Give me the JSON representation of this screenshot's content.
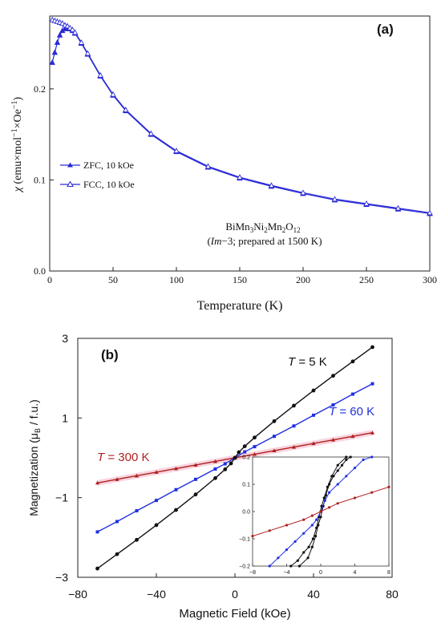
{
  "chart_data": [
    {
      "type": "line",
      "panel_label": "(a)",
      "xlabel": "Temperature (K)",
      "ylabel_main": "χ",
      "ylabel_rest": " (emu×mol",
      "ylabel_sup1": "−1",
      "ylabel_mid": "×Oe",
      "ylabel_sup2": "−1",
      "ylabel_end": ")",
      "xlim": [
        0,
        300
      ],
      "ylim": [
        0,
        0.28
      ],
      "xticks": [
        0,
        50,
        100,
        150,
        200,
        250,
        300
      ],
      "xtick_labels": [
        "0",
        "50",
        "100",
        "150",
        "200",
        "250",
        "300"
      ],
      "yticks": [
        0.0,
        0.1,
        0.2
      ],
      "ytick_labels": [
        "0.0",
        "0.1",
        "0.2"
      ],
      "legend": [
        "ZFC, 10 kOe",
        "FCC, 10 kOe"
      ],
      "annotation": {
        "line1": "BiMn",
        "line1_sub1": "3",
        "line1_mid1": "Ni",
        "line1_sub2": "2",
        "line1_mid2": "Mn",
        "line1_sub3": "2",
        "line1_mid3": "O",
        "line1_sub4": "12",
        "line2_open": "(",
        "line2_italic": "Im",
        "line2_rest": "−3; prepared at 1500 K)"
      },
      "series": [
        {
          "name": "ZFC, 10 kOe",
          "color": "#2a2ad6",
          "x": [
            2,
            4,
            6,
            8,
            10,
            12,
            14,
            16,
            18,
            20,
            25,
            30,
            40,
            50,
            60,
            80,
            100,
            125,
            150,
            175,
            200,
            225,
            250,
            275,
            300
          ],
          "y": [
            0.229,
            0.24,
            0.251,
            0.259,
            0.264,
            0.266,
            0.267,
            0.266,
            0.264,
            0.261,
            0.25,
            0.238,
            0.214,
            0.193,
            0.176,
            0.15,
            0.131,
            0.114,
            0.102,
            0.093,
            0.085,
            0.078,
            0.073,
            0.068,
            0.063
          ]
        },
        {
          "name": "FCC, 10 kOe",
          "color": "#2a2ad6",
          "x": [
            2,
            4,
            6,
            8,
            10,
            12,
            14,
            16,
            18,
            20,
            25,
            30,
            40,
            50,
            60,
            80,
            100,
            125,
            150,
            175,
            200,
            225,
            250,
            275,
            300
          ],
          "y": [
            0.276,
            0.275,
            0.274,
            0.273,
            0.272,
            0.27,
            0.269,
            0.267,
            0.265,
            0.262,
            0.251,
            0.239,
            0.215,
            0.194,
            0.177,
            0.151,
            0.132,
            0.115,
            0.103,
            0.094,
            0.086,
            0.079,
            0.074,
            0.069,
            0.064
          ]
        }
      ]
    },
    {
      "type": "line",
      "panel_label": "(b)",
      "xlabel": "Magnetic Field (kOe)",
      "ylabel_pre": "Magnetization  (",
      "ylabel_mu": "μ",
      "ylabel_sub": "B",
      "ylabel_post": " / f.u.)",
      "xlim": [
        -80,
        80
      ],
      "ylim": [
        -3,
        3
      ],
      "xticks": [
        -80,
        -40,
        0,
        40,
        80
      ],
      "xtick_labels": [
        "−80",
        "−40",
        "0",
        "40",
        "80"
      ],
      "yticks": [
        -3,
        -1,
        1,
        3
      ],
      "ytick_labels": [
        "−3",
        "−1",
        "1",
        "3"
      ],
      "series": [
        {
          "name_italic": "T",
          "name_rest": " = 5 K",
          "color": "#111111",
          "x": [
            -70,
            -60,
            -50,
            -40,
            -30,
            -20,
            -10,
            -5,
            -2,
            0,
            2,
            5,
            10,
            20,
            30,
            40,
            50,
            60,
            70
          ],
          "y": [
            -2.78,
            -2.42,
            -2.06,
            -1.69,
            -1.31,
            -0.92,
            -0.51,
            -0.29,
            -0.14,
            0.0,
            0.14,
            0.29,
            0.51,
            0.92,
            1.31,
            1.69,
            2.06,
            2.42,
            2.78
          ]
        },
        {
          "name_italic": "T",
          "name_rest": " = 60 K",
          "color": "#1f2fe0",
          "x": [
            -70,
            -60,
            -50,
            -40,
            -30,
            -20,
            -10,
            -5,
            0,
            5,
            10,
            20,
            30,
            40,
            50,
            60,
            70
          ],
          "y": [
            -1.86,
            -1.6,
            -1.33,
            -1.07,
            -0.8,
            -0.54,
            -0.28,
            -0.15,
            0.0,
            0.15,
            0.28,
            0.54,
            0.8,
            1.07,
            1.33,
            1.6,
            1.86
          ]
        },
        {
          "name_italic": "T",
          "name_rest": " = 300 K",
          "color": "#b02020",
          "x": [
            -70,
            -60,
            -50,
            -40,
            -30,
            -20,
            -10,
            0,
            10,
            20,
            30,
            40,
            50,
            60,
            70
          ],
          "y": [
            -0.63,
            -0.54,
            -0.45,
            -0.36,
            -0.27,
            -0.18,
            -0.09,
            0.0,
            0.09,
            0.18,
            0.27,
            0.36,
            0.45,
            0.54,
            0.63
          ]
        }
      ],
      "inset": {
        "xlim": [
          -8,
          8
        ],
        "ylim": [
          -0.2,
          0.2
        ],
        "xticks": [
          -8,
          -4,
          0,
          4,
          8
        ],
        "xtick_labels": [
          "−8",
          "−4",
          "0",
          "4",
          "8"
        ],
        "yticks": [
          -0.2,
          -0.1,
          0.0,
          0.1,
          0.2
        ],
        "ytick_labels": [
          "−0.2",
          "−0.1",
          "0.0",
          "0.1",
          "0.2"
        ],
        "series": [
          {
            "color": "#111111",
            "x": [
              -2.5,
              -1.5,
              -1.0,
              -0.6,
              -0.3,
              0.0,
              0.3,
              0.6,
              1.0,
              1.5,
              2.0,
              2.5,
              3.0,
              3.5
            ],
            "y": [
              -0.2,
              -0.17,
              -0.13,
              -0.09,
              -0.05,
              -0.02,
              0.02,
              0.06,
              0.1,
              0.13,
              0.15,
              0.17,
              0.19,
              0.2
            ]
          },
          {
            "color": "#111111",
            "x": [
              3.0,
              2.0,
              1.3,
              0.8,
              0.4,
              0.1,
              -0.2,
              -0.5,
              -0.9,
              -1.4,
              -2.0,
              -2.7,
              -3.5
            ],
            "y": [
              0.2,
              0.17,
              0.13,
              0.09,
              0.05,
              0.02,
              -0.02,
              -0.06,
              -0.1,
              -0.13,
              -0.15,
              -0.18,
              -0.2
            ]
          },
          {
            "color": "#1f2fe0",
            "x": [
              -6.0,
              -5.0,
              -4.0,
              -3.0,
              -2.0,
              -1.0,
              -0.5,
              0.0,
              0.5,
              1.0,
              2.0,
              3.0,
              4.0,
              5.0,
              6.0
            ],
            "y": [
              -0.2,
              -0.17,
              -0.14,
              -0.11,
              -0.08,
              -0.05,
              -0.03,
              0.0,
              0.04,
              0.07,
              0.1,
              0.13,
              0.16,
              0.19,
              0.2
            ]
          },
          {
            "color": "#b02020",
            "x": [
              -8,
              -6,
              -4,
              -2,
              -1,
              0,
              1,
              2,
              4,
              6,
              8
            ],
            "y": [
              -0.09,
              -0.07,
              -0.05,
              -0.03,
              -0.015,
              0.0,
              0.015,
              0.03,
              0.05,
              0.07,
              0.09
            ]
          }
        ]
      }
    }
  ]
}
